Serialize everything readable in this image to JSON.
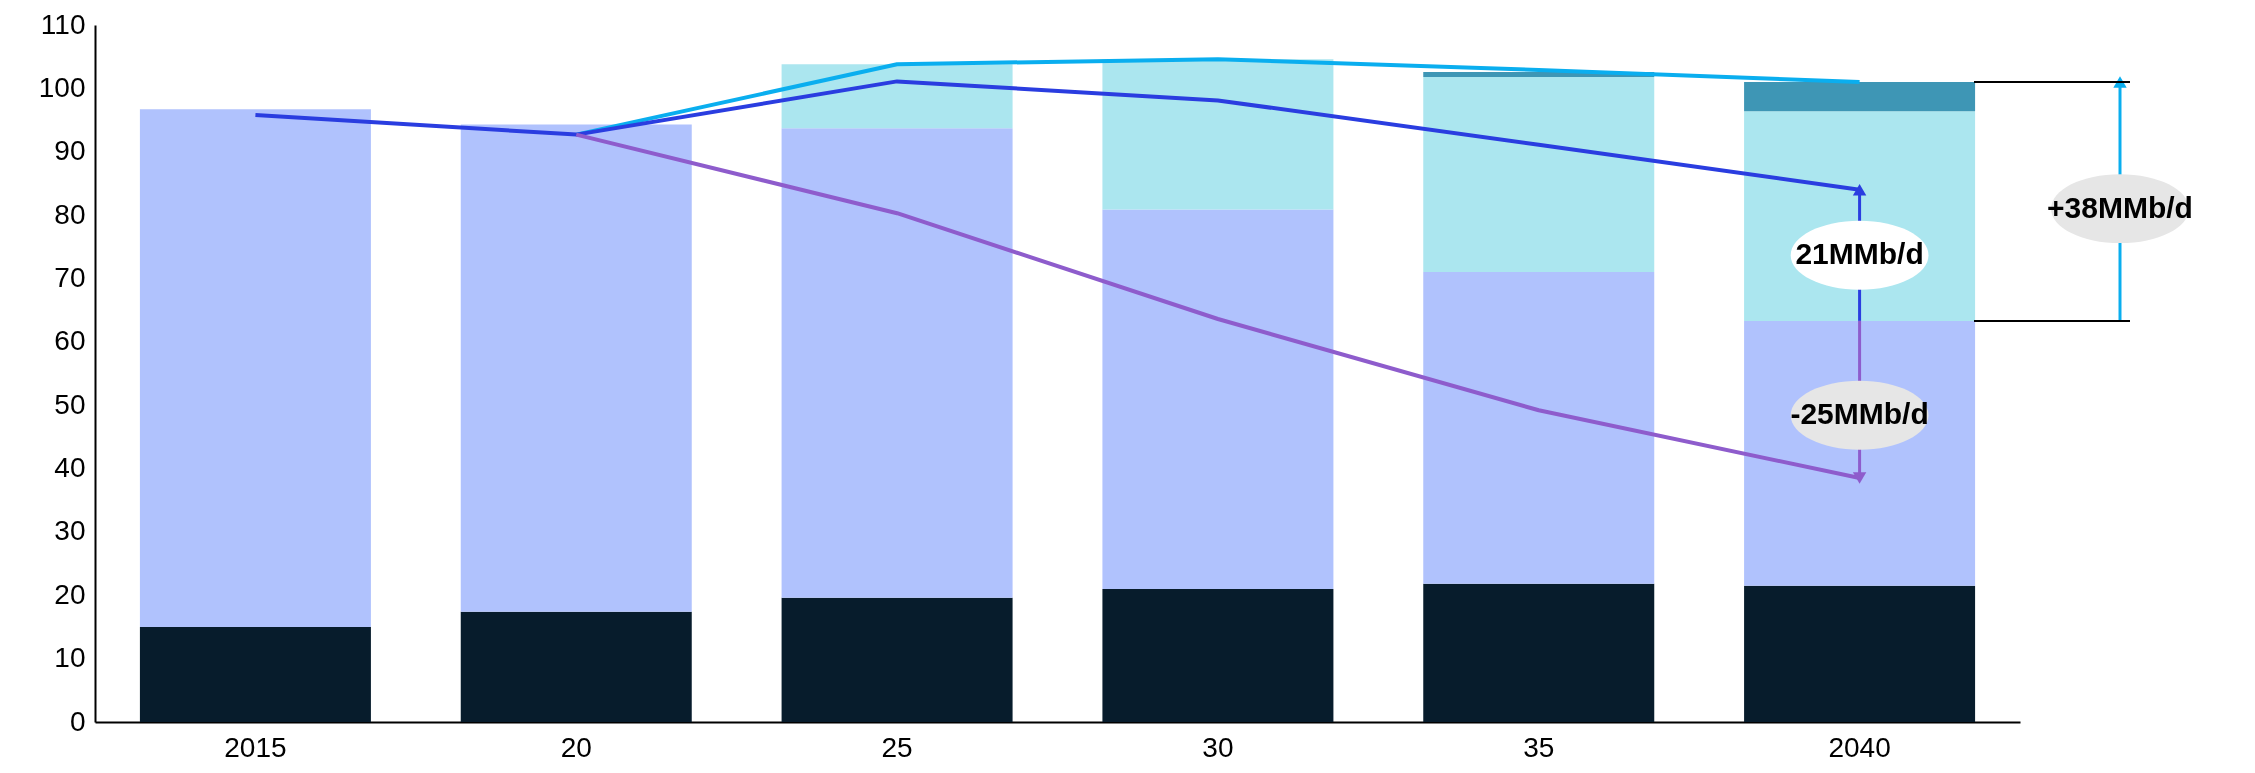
{
  "chart_data": {
    "type": "bar",
    "stacked": true,
    "categories": [
      "2015",
      "20",
      "25",
      "30",
      "35",
      "2040"
    ],
    "series": [
      {
        "color": "#071c2c",
        "values": [
          15.0,
          17.4,
          19.6,
          21.0,
          21.8,
          21.5
        ]
      },
      {
        "color": "#b0c2fd",
        "values": [
          81.7,
          76.9,
          74.1,
          59.9,
          49.2,
          41.8
        ]
      },
      {
        "color": "#abe6ef",
        "values": [
          null,
          null,
          10.1,
          23.7,
          30.8,
          33.1
        ]
      },
      {
        "color": "#3e96b5",
        "values": [
          null,
          null,
          null,
          null,
          0.8,
          4.6
        ]
      },
      {
        "type": "line",
        "color": "#0aaeef",
        "values": [
          null,
          92.7,
          103.8,
          104.6,
          102.9,
          101.0
        ]
      },
      {
        "type": "line",
        "color": "#2a3de0",
        "values": [
          95.8,
          92.7,
          101.1,
          98.1,
          91.1,
          84.0
        ]
      },
      {
        "type": "line",
        "color": "#8e5ccc",
        "values": [
          null,
          92.7,
          80.3,
          63.6,
          49.2,
          38.5
        ]
      }
    ],
    "ylim": [
      0,
      110
    ],
    "yticks": [
      0,
      10,
      20,
      30,
      40,
      50,
      60,
      70,
      80,
      90,
      100,
      110
    ],
    "grid": false,
    "legend": false,
    "annotations": [
      "21MMb/d",
      "-25MMb/d",
      "+38MMb/d"
    ]
  }
}
